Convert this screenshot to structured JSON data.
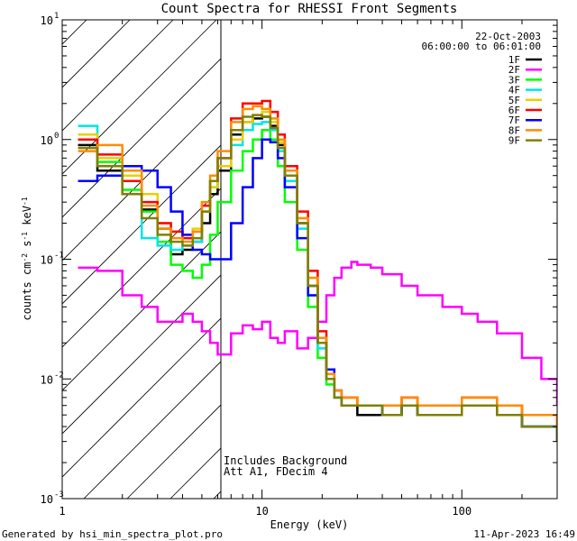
{
  "chart_data": {
    "type": "line",
    "title": "Count Spectra for RHESSI Front Segments",
    "xlabel": "Energy (keV)",
    "ylabel": "counts cm^-2 s^-1 keV^-1",
    "xscale": "log",
    "yscale": "log",
    "xlim": [
      1,
      300
    ],
    "ylim": [
      0.001,
      10
    ],
    "x_tick_labels": [
      "1",
      "10",
      "100"
    ],
    "y_tick_labels": [
      {
        "base": "10",
        "exp": "-3"
      },
      {
        "base": "10",
        "exp": "-2"
      },
      {
        "base": "10",
        "exp": "-1"
      },
      {
        "base": "10",
        "exp": "0"
      },
      {
        "base": "10",
        "exp": "1"
      }
    ],
    "hatched_region": [
      1,
      6
    ],
    "date": "22-Oct-2003",
    "time_range": "06:00:00 to 06:01:00",
    "annotation_lines": [
      "Includes Background",
      "Att A1, FDecim 4"
    ],
    "footer_left": "Generated by hsi_min_spectra_plot.pro",
    "footer_right": "11-Apr-2023 16:49",
    "legend_position": "top-right",
    "series": [
      {
        "name": "1F",
        "color": "#000000",
        "x": [
          1.2,
          1.5,
          2,
          2.5,
          3,
          3.5,
          4,
          4.5,
          5,
          5.5,
          6,
          7,
          8,
          9,
          10,
          11,
          12,
          13,
          15,
          17,
          19,
          21,
          23,
          25,
          30,
          40,
          50,
          60,
          80,
          100,
          150,
          200,
          250,
          300
        ],
        "y": [
          0.9,
          0.55,
          0.35,
          0.26,
          0.18,
          0.11,
          0.12,
          0.14,
          0.2,
          0.35,
          0.55,
          1.1,
          1.4,
          1.5,
          1.55,
          1.3,
          0.9,
          0.5,
          0.2,
          0.06,
          0.02,
          0.01,
          0.007,
          0.006,
          0.005,
          0.005,
          0.006,
          0.005,
          0.005,
          0.006,
          0.005,
          0.004,
          0.004,
          0.003
        ]
      },
      {
        "name": "2F",
        "color": "#ff00ff",
        "x": [
          1.2,
          1.5,
          2,
          2.5,
          3,
          3.5,
          4,
          4.5,
          5,
          5.5,
          6,
          7,
          8,
          9,
          10,
          11,
          12,
          13,
          15,
          17,
          19,
          21,
          23,
          25,
          28,
          30,
          35,
          40,
          50,
          60,
          80,
          100,
          120,
          150,
          200,
          250,
          300
        ],
        "y": [
          0.085,
          0.08,
          0.05,
          0.04,
          0.03,
          0.03,
          0.035,
          0.03,
          0.025,
          0.02,
          0.016,
          0.024,
          0.028,
          0.026,
          0.03,
          0.022,
          0.02,
          0.025,
          0.018,
          0.022,
          0.03,
          0.05,
          0.07,
          0.085,
          0.095,
          0.09,
          0.085,
          0.075,
          0.06,
          0.05,
          0.04,
          0.035,
          0.03,
          0.024,
          0.015,
          0.01,
          0.006
        ]
      },
      {
        "name": "3F",
        "color": "#00ff00",
        "x": [
          1.2,
          1.5,
          2,
          2.5,
          3,
          3.5,
          4,
          4.5,
          5,
          5.5,
          6,
          7,
          8,
          9,
          10,
          11,
          12,
          13,
          15,
          17,
          19,
          21,
          23,
          25,
          30,
          40,
          50,
          60,
          80,
          100,
          150,
          200,
          250,
          300
        ],
        "y": [
          1.0,
          0.65,
          0.38,
          0.25,
          0.14,
          0.09,
          0.08,
          0.07,
          0.09,
          0.16,
          0.3,
          0.55,
          0.8,
          1.0,
          1.2,
          1.0,
          0.6,
          0.3,
          0.12,
          0.04,
          0.015,
          0.009,
          0.007,
          0.006,
          0.006,
          0.005,
          0.006,
          0.005,
          0.005,
          0.006,
          0.005,
          0.004,
          0.004,
          0.003
        ]
      },
      {
        "name": "4F",
        "color": "#00e5e5",
        "x": [
          1.2,
          1.5,
          2,
          2.5,
          3,
          3.5,
          4,
          4.5,
          5,
          5.5,
          6,
          7,
          8,
          9,
          10,
          11,
          12,
          13,
          15,
          17,
          19,
          21,
          23,
          25,
          30,
          40,
          50,
          60,
          80,
          100,
          150,
          200,
          250,
          300
        ],
        "y": [
          1.3,
          0.6,
          0.45,
          0.15,
          0.13,
          0.12,
          0.13,
          0.14,
          0.25,
          0.4,
          0.6,
          0.9,
          1.2,
          1.35,
          1.4,
          1.2,
          0.8,
          0.45,
          0.18,
          0.05,
          0.018,
          0.01,
          0.007,
          0.006,
          0.006,
          0.005,
          0.006,
          0.005,
          0.005,
          0.006,
          0.005,
          0.004,
          0.004,
          0.003
        ]
      },
      {
        "name": "5F",
        "color": "#e6d200",
        "x": [
          1.2,
          1.5,
          2,
          2.5,
          3,
          3.5,
          4,
          4.5,
          5,
          5.5,
          6,
          7,
          8,
          9,
          10,
          11,
          12,
          13,
          15,
          17,
          19,
          21,
          23,
          25,
          30,
          40,
          50,
          60,
          80,
          100,
          150,
          200,
          250,
          300
        ],
        "y": [
          1.1,
          0.7,
          0.5,
          0.35,
          0.2,
          0.17,
          0.16,
          0.18,
          0.25,
          0.4,
          0.6,
          1.0,
          1.4,
          1.6,
          1.7,
          1.4,
          0.95,
          0.55,
          0.22,
          0.07,
          0.022,
          0.012,
          0.008,
          0.007,
          0.006,
          0.006,
          0.007,
          0.006,
          0.006,
          0.007,
          0.006,
          0.005,
          0.005,
          0.004
        ]
      },
      {
        "name": "6F",
        "color": "#ff0000",
        "x": [
          1.2,
          1.5,
          2,
          2.5,
          3,
          3.5,
          4,
          4.5,
          5,
          5.5,
          6,
          7,
          8,
          9,
          10,
          11,
          12,
          13,
          15,
          17,
          19,
          21,
          23,
          25,
          30,
          40,
          50,
          60,
          80,
          100,
          150,
          200,
          250,
          300
        ],
        "y": [
          1.0,
          0.75,
          0.45,
          0.3,
          0.2,
          0.17,
          0.15,
          0.17,
          0.28,
          0.45,
          0.7,
          1.5,
          2.0,
          2.0,
          2.1,
          1.7,
          1.1,
          0.6,
          0.25,
          0.08,
          0.025,
          0.012,
          0.008,
          0.007,
          0.006,
          0.006,
          0.007,
          0.006,
          0.006,
          0.007,
          0.006,
          0.005,
          0.005,
          0.004
        ]
      },
      {
        "name": "7F",
        "color": "#0000ff",
        "x": [
          1.2,
          1.5,
          2,
          2.5,
          3,
          3.5,
          4,
          4.5,
          5,
          5.5,
          6,
          7,
          8,
          9,
          10,
          11,
          12,
          13,
          15,
          17,
          19,
          21,
          23,
          25,
          30,
          40,
          50,
          60,
          80,
          100,
          150,
          200,
          250,
          300
        ],
        "y": [
          0.45,
          0.5,
          0.6,
          0.55,
          0.4,
          0.25,
          0.16,
          0.12,
          0.11,
          0.1,
          0.1,
          0.2,
          0.4,
          0.7,
          1.0,
          0.95,
          0.7,
          0.4,
          0.15,
          0.05,
          0.02,
          0.012,
          0.008,
          0.006,
          0.006,
          0.005,
          0.006,
          0.005,
          0.005,
          0.006,
          0.005,
          0.004,
          0.004,
          0.003
        ]
      },
      {
        "name": "8F",
        "color": "#ff8c00",
        "x": [
          1.2,
          1.5,
          2,
          2.5,
          3,
          3.5,
          4,
          4.5,
          5,
          5.5,
          6,
          7,
          8,
          9,
          10,
          11,
          12,
          13,
          15,
          17,
          19,
          21,
          23,
          25,
          30,
          40,
          50,
          60,
          80,
          100,
          150,
          200,
          250,
          300
        ],
        "y": [
          0.8,
          0.9,
          0.55,
          0.28,
          0.18,
          0.15,
          0.14,
          0.17,
          0.3,
          0.5,
          0.8,
          1.4,
          1.8,
          1.9,
          1.8,
          1.5,
          1.0,
          0.55,
          0.22,
          0.07,
          0.022,
          0.011,
          0.008,
          0.007,
          0.006,
          0.006,
          0.007,
          0.006,
          0.006,
          0.007,
          0.006,
          0.005,
          0.005,
          0.004
        ]
      },
      {
        "name": "9F",
        "color": "#808000",
        "x": [
          1.2,
          1.5,
          2,
          2.5,
          3,
          3.5,
          4,
          4.5,
          5,
          5.5,
          6,
          7,
          8,
          9,
          10,
          11,
          12,
          13,
          15,
          17,
          19,
          21,
          23,
          25,
          30,
          40,
          50,
          60,
          80,
          100,
          150,
          200,
          250,
          300
        ],
        "y": [
          0.85,
          0.6,
          0.35,
          0.22,
          0.16,
          0.14,
          0.13,
          0.15,
          0.25,
          0.45,
          0.7,
          1.2,
          1.55,
          1.6,
          1.55,
          1.25,
          0.85,
          0.5,
          0.2,
          0.06,
          0.02,
          0.01,
          0.007,
          0.006,
          0.006,
          0.005,
          0.006,
          0.005,
          0.005,
          0.006,
          0.005,
          0.004,
          0.004,
          0.003
        ]
      }
    ]
  }
}
